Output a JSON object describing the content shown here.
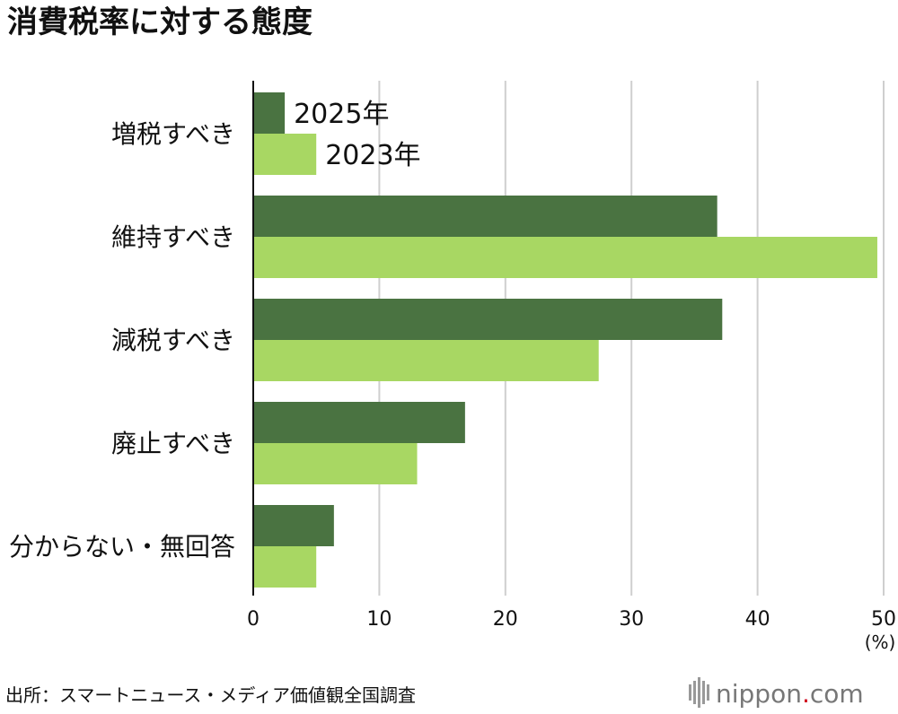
{
  "chart_data": {
    "type": "bar",
    "orientation": "horizontal",
    "title": "消費税率に対する態度",
    "categories": [
      "増税すべき",
      "維持すべき",
      "減税すべき",
      "廃止すべき",
      "分からない・無回答"
    ],
    "series": [
      {
        "name": "2025年",
        "color": "#4a7341",
        "values": [
          2.5,
          36.8,
          37.2,
          16.8,
          6.4
        ]
      },
      {
        "name": "2023年",
        "color": "#a8d763",
        "values": [
          5.0,
          49.5,
          27.4,
          13.0,
          5.0
        ]
      }
    ],
    "xlim": [
      0,
      50
    ],
    "xticks": [
      "0",
      "10",
      "20",
      "30",
      "40",
      "50"
    ],
    "xunit": "(%)",
    "grid": true,
    "legend_placement": "inline-first-category"
  },
  "source": "出所：スマートニュース・メディア価値観全国調査",
  "brand": {
    "name": "nippon",
    "dot": ".",
    "tld": "com"
  }
}
